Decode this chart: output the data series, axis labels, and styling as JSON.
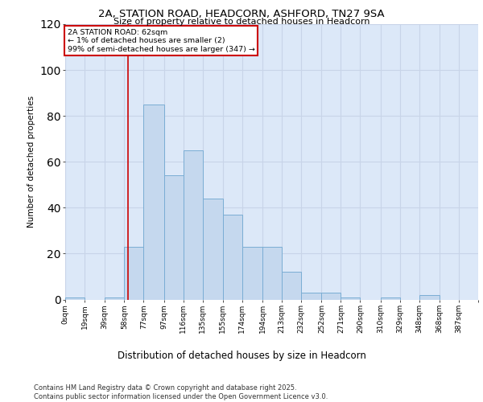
{
  "title": "2A, STATION ROAD, HEADCORN, ASHFORD, TN27 9SA",
  "subtitle": "Size of property relative to detached houses in Headcorn",
  "xlabel": "Distribution of detached houses by size in Headcorn",
  "ylabel": "Number of detached properties",
  "bin_labels": [
    "0sqm",
    "19sqm",
    "39sqm",
    "58sqm",
    "77sqm",
    "97sqm",
    "116sqm",
    "135sqm",
    "155sqm",
    "174sqm",
    "194sqm",
    "213sqm",
    "232sqm",
    "252sqm",
    "271sqm",
    "290sqm",
    "310sqm",
    "329sqm",
    "348sqm",
    "368sqm",
    "387sqm"
  ],
  "bar_heights": [
    1,
    0,
    1,
    23,
    85,
    54,
    65,
    44,
    37,
    23,
    23,
    12,
    3,
    3,
    1,
    0,
    1,
    0,
    2,
    0,
    0
  ],
  "bar_color": "#c5d8ee",
  "bar_edge_color": "#7aadd4",
  "vline_x": 62,
  "vline_color": "#cc0000",
  "annotation_text": "2A STATION ROAD: 62sqm\n← 1% of detached houses are smaller (2)\n99% of semi-detached houses are larger (347) →",
  "annotation_box_color": "#cc0000",
  "ylim": [
    0,
    120
  ],
  "yticks": [
    0,
    20,
    40,
    60,
    80,
    100,
    120
  ],
  "grid_color": "#c8d4e8",
  "background_color": "#dce8f8",
  "footer_text": "Contains HM Land Registry data © Crown copyright and database right 2025.\nContains public sector information licensed under the Open Government Licence v3.0.",
  "bin_edges": [
    0,
    19,
    39,
    58,
    77,
    97,
    116,
    135,
    155,
    174,
    194,
    213,
    232,
    252,
    271,
    290,
    310,
    329,
    348,
    368,
    387
  ]
}
